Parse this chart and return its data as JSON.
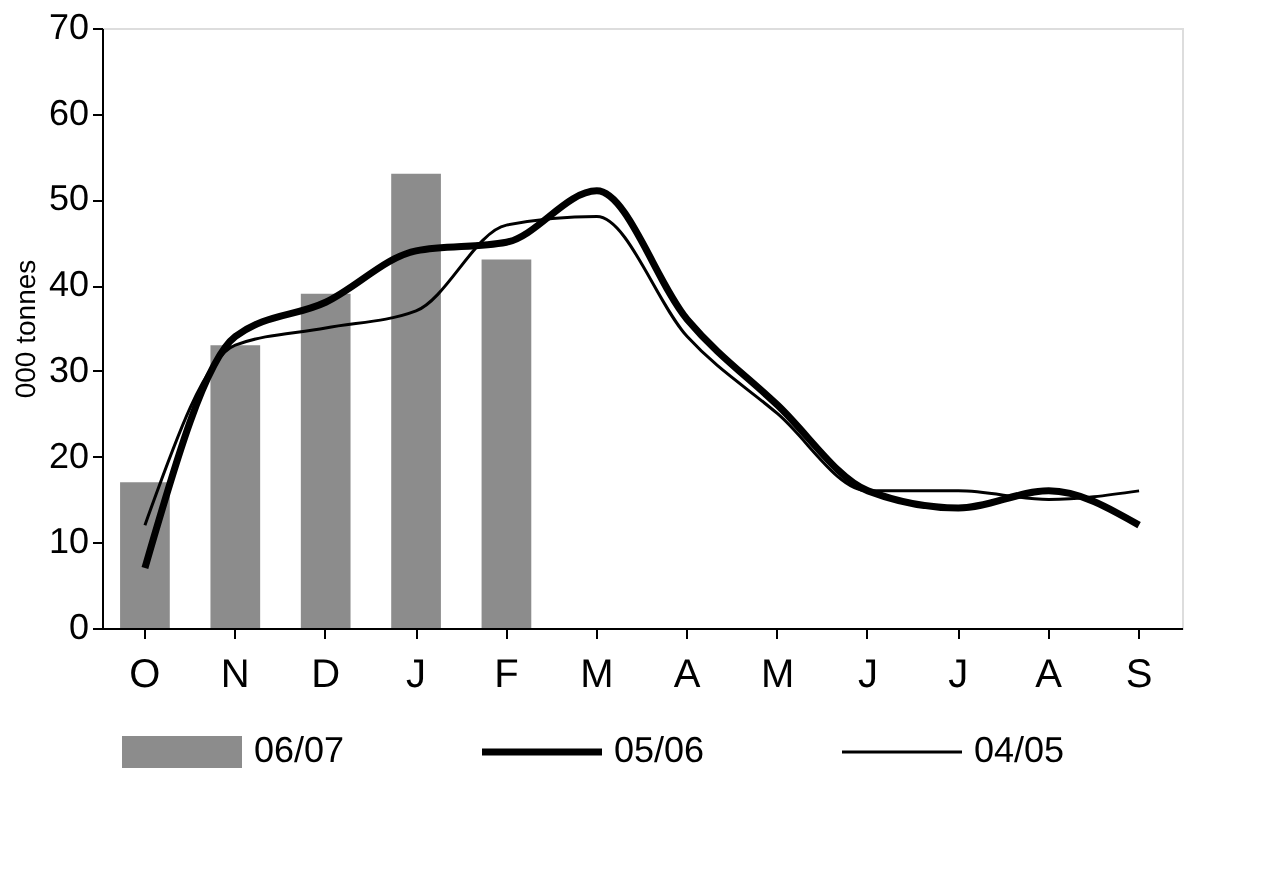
{
  "chart_data": {
    "type": "bar",
    "ylabel": "000 tonnes",
    "categories": [
      "O",
      "N",
      "D",
      "J",
      "F",
      "M",
      "A",
      "M",
      "J",
      "J",
      "A",
      "S"
    ],
    "series": [
      {
        "name": "06/07",
        "color": "#8c8c8c",
        "values": [
          17,
          33,
          39,
          53,
          43,
          null,
          null,
          null,
          null,
          null,
          null,
          null
        ]
      },
      {
        "name": "05/06",
        "type": "line",
        "color": "#000000",
        "values": [
          7,
          34,
          38,
          44,
          45,
          51,
          36,
          26,
          16,
          14,
          16,
          12
        ]
      },
      {
        "name": "04/05",
        "type": "line",
        "color": "#000000",
        "values": [
          12,
          33,
          35,
          37,
          47,
          48,
          34,
          25,
          16,
          16,
          15,
          16
        ]
      }
    ],
    "ylim": [
      0,
      70
    ],
    "yticks": [
      0,
      10,
      20,
      30,
      40,
      50,
      60,
      70
    ],
    "grid": false,
    "legend": "bottom"
  }
}
